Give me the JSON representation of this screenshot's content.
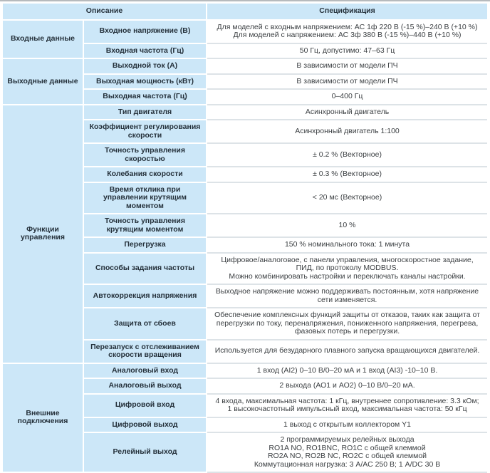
{
  "colors": {
    "cell_blue": "#cce7f8",
    "value_separator": "#dde3e7",
    "top_bar": "#b6babd",
    "label_text": "#24303a",
    "value_text": "#3b3f42"
  },
  "table": {
    "header": {
      "description": "Описание",
      "specification": "Спецификация"
    },
    "groups": [
      {
        "name": "Входные данные",
        "rows": [
          {
            "label": "Входное напряжение (В)",
            "value": "Для моделей с входным напряжением: АС 1ф 220 В (-15 %)–240 В (+10 %)\nДля моделей с напряжением: АС 3ф 380 В (-15 %)–440 В (+10 %)"
          },
          {
            "label": "Входная частота (Гц)",
            "value": "50 Гц, допустимо: 47–63 Гц"
          }
        ]
      },
      {
        "name": "Выходные данные",
        "rows": [
          {
            "label": "Выходной ток (А)",
            "value": "В зависимости от модели ПЧ"
          },
          {
            "label": "Выходная мощность (кВт)",
            "value": "В зависимости от модели ПЧ"
          },
          {
            "label": "Выходная частота (Гц)",
            "value": "0–400 Гц"
          }
        ]
      },
      {
        "name": "Функции управления",
        "rows": [
          {
            "label": "Тип двигателя",
            "value": "Асинхронный двигатель"
          },
          {
            "label": "Коэффициент регулирования скорости",
            "value": "Асинхронный двигатель 1:100"
          },
          {
            "label": "Точность управления скоростью",
            "value": "± 0.2 % (Векторное)"
          },
          {
            "label": "Колебания скорости",
            "value": "± 0.3 % (Векторное)"
          },
          {
            "label": "Время отклика при управлении крутящим моментом",
            "value": "< 20 мс (Векторное)"
          },
          {
            "label": "Точность управления крутящим моментом",
            "value": "10 %"
          },
          {
            "label": "Перегрузка",
            "value": "150 % номинального тока: 1 минута"
          },
          {
            "label": "Способы задания частоты",
            "value": "Цифровое/аналоговое, с панели управления, многоскоростное задание, ПИД, по протоколу MODBUS.\nМожно комбинировать настройки и переключать каналы настройки."
          },
          {
            "label": "Автокоррекция напряжения",
            "value": "Выходное напряжение можно поддерживать постоянным, хотя напряжение сети изменяется."
          },
          {
            "label": "Защита от сбоев",
            "value": "Обеспечение комплексных функций защиты от отказов, таких как защита от перегрузки по току, перенапряжения, пониженного напряжения, перегрева, фазовых потерь и перегрузки."
          },
          {
            "label": "Перезапуск с отслеживанием скорости вращения",
            "value": "Используется для безударного плавного запуска вращающихся двигателей."
          }
        ]
      },
      {
        "name": "Внешние подключения",
        "rows": [
          {
            "label": "Аналоговый вход",
            "value": "1 вход (AI2) 0–10 В/0–20 мА и 1 вход (AI3) -10–10 В."
          },
          {
            "label": "Аналоговый выход",
            "value": "2 выхода (АО1 и АО2) 0–10 В/0–20 мА."
          },
          {
            "label": "Цифровой вход",
            "value": "4 входа, максимальная частота: 1 кГц, внутреннее сопротивление: 3.3 кОм;\n1 высокочастотный импульсный вход, максимальная частота: 50 кГц"
          },
          {
            "label": "Цифровой выход",
            "value": "1 выход с открытым коллектором Y1"
          },
          {
            "label": "Релейный выход",
            "value": "2 программируемых релейных выхода\nRO1A NO, RO1BNC, RO1C с общей клеммой\nRO2A NO, RO2B NC, RO2C с общей клеммой\nКоммутационная нагрузка: 3 А/АС 250 В; 1 А/DC 30 В"
          }
        ]
      }
    ]
  }
}
